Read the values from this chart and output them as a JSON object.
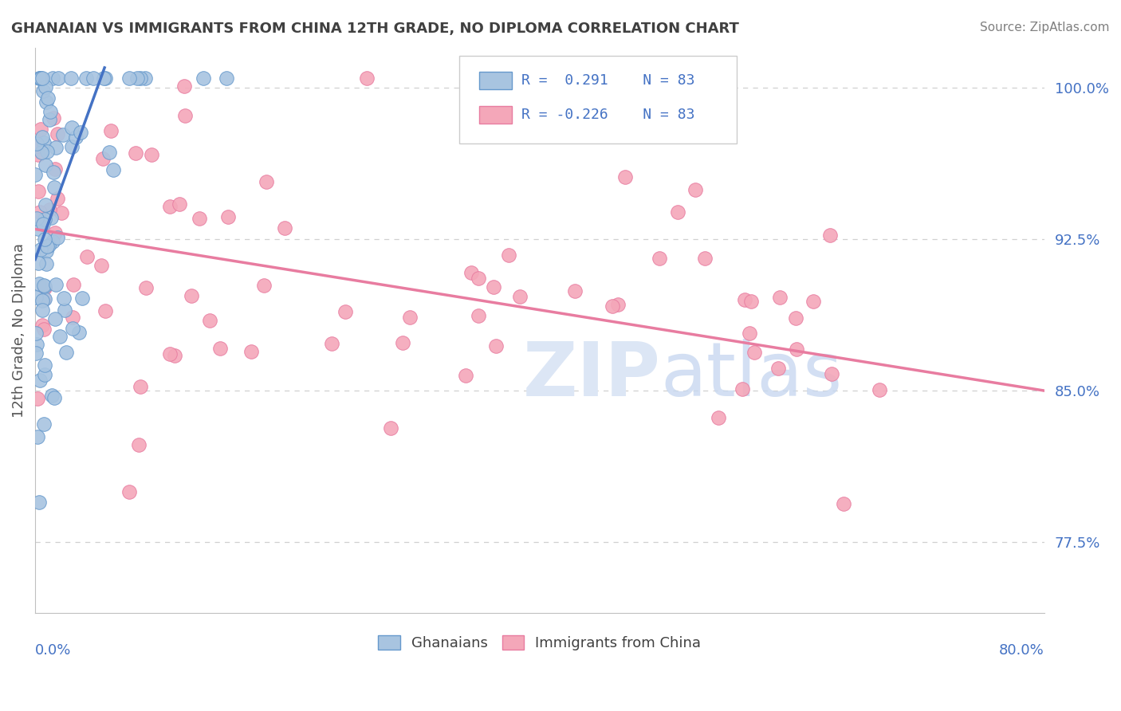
{
  "title": "GHANAIAN VS IMMIGRANTS FROM CHINA 12TH GRADE, NO DIPLOMA CORRELATION CHART",
  "source": "Source: ZipAtlas.com",
  "ylabel": "12th Grade, No Diploma",
  "legend_blue_label": "Ghanaians",
  "legend_pink_label": "Immigrants from China",
  "R_blue": 0.291,
  "N_blue": 83,
  "R_pink": -0.226,
  "N_pink": 83,
  "xmin": 0.0,
  "xmax": 80.0,
  "ymin": 74.0,
  "ymax": 102.0,
  "yticks": [
    77.5,
    85.0,
    92.5,
    100.0
  ],
  "ytick_labels": [
    "77.5%",
    "85.0%",
    "92.5%",
    "100.0%"
  ],
  "blue_line_color": "#4472c4",
  "pink_line_color": "#e87ca0",
  "blue_scatter_color": "#a8c4e0",
  "blue_edge_color": "#6699cc",
  "pink_scatter_color": "#f4a7b9",
  "pink_edge_color": "#e87ca0",
  "title_color": "#404040",
  "axis_label_color": "#4472c4",
  "watermark_color": "#dce6f5",
  "source_color": "#808080",
  "background_color": "#ffffff",
  "grid_color": "#d0d0d0",
  "blue_trend_x0": 0.0,
  "blue_trend_y0": 91.5,
  "blue_trend_x1": 5.5,
  "blue_trend_y1": 101.0,
  "pink_trend_x0": 0.0,
  "pink_trend_y0": 93.0,
  "pink_trend_x1": 80.0,
  "pink_trend_y1": 85.0
}
